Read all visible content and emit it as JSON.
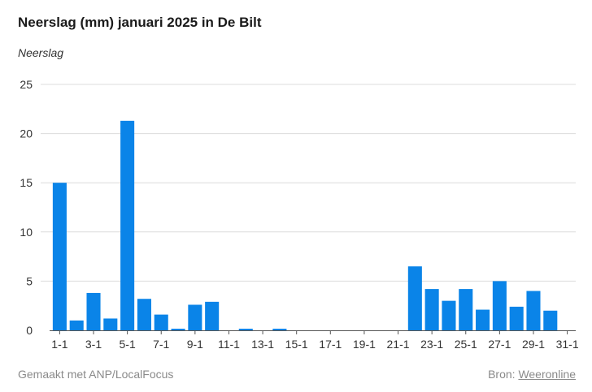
{
  "title": "Neerslag (mm) januari 2025 in De Bilt",
  "footer": {
    "made_with": "Gemaakt met ANP/LocalFocus",
    "source_prefix": "Bron:",
    "source_link": "Weeronline"
  },
  "colors": {
    "bar": "#0a84e8",
    "grid": "#dcdcdc",
    "axis": "#555555"
  },
  "chart_data": {
    "type": "bar",
    "title": "Neerslag (mm) januari 2025 in De Bilt",
    "ylabel": "Neerslag",
    "xlabel": "",
    "ylim": [
      0,
      25
    ],
    "yticks": [
      0,
      5,
      10,
      15,
      20,
      25
    ],
    "grid": true,
    "categories": [
      "1-1",
      "2-1",
      "3-1",
      "4-1",
      "5-1",
      "6-1",
      "7-1",
      "8-1",
      "9-1",
      "10-1",
      "11-1",
      "12-1",
      "13-1",
      "14-1",
      "15-1",
      "16-1",
      "17-1",
      "18-1",
      "19-1",
      "20-1",
      "21-1",
      "22-1",
      "23-1",
      "24-1",
      "25-1",
      "26-1",
      "27-1",
      "28-1",
      "29-1",
      "30-1",
      "31-1"
    ],
    "tick_labels": [
      "1-1",
      "3-1",
      "5-1",
      "7-1",
      "9-1",
      "11-1",
      "13-1",
      "15-1",
      "17-1",
      "19-1",
      "21-1",
      "23-1",
      "25-1",
      "27-1",
      "29-1",
      "31-1"
    ],
    "values": [
      15.0,
      1.0,
      3.8,
      1.2,
      21.3,
      3.2,
      1.6,
      0.1,
      2.6,
      2.9,
      0.0,
      0.1,
      0.0,
      0.1,
      0.0,
      0.0,
      0.0,
      0.0,
      0.0,
      0.0,
      0.0,
      6.5,
      4.2,
      3.0,
      4.2,
      2.1,
      5.0,
      2.4,
      4.0,
      2.0,
      0.0
    ]
  }
}
